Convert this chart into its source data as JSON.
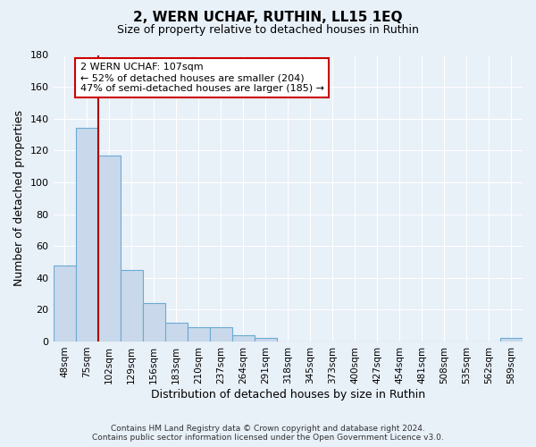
{
  "title": "2, WERN UCHAF, RUTHIN, LL15 1EQ",
  "subtitle": "Size of property relative to detached houses in Ruthin",
  "xlabel": "Distribution of detached houses by size in Ruthin",
  "ylabel": "Number of detached properties",
  "bar_labels": [
    "48sqm",
    "75sqm",
    "102sqm",
    "129sqm",
    "156sqm",
    "183sqm",
    "210sqm",
    "237sqm",
    "264sqm",
    "291sqm",
    "318sqm",
    "345sqm",
    "373sqm",
    "400sqm",
    "427sqm",
    "454sqm",
    "481sqm",
    "508sqm",
    "535sqm",
    "562sqm",
    "589sqm"
  ],
  "bar_values": [
    48,
    134,
    117,
    45,
    24,
    12,
    9,
    9,
    4,
    2,
    0,
    0,
    0,
    0,
    0,
    0,
    0,
    0,
    0,
    0,
    2
  ],
  "bar_color": "#c9d9eb",
  "bar_edge_color": "#6aaad4",
  "ylim": [
    0,
    180
  ],
  "yticks": [
    0,
    20,
    40,
    60,
    80,
    100,
    120,
    140,
    160,
    180
  ],
  "vline_x_index": 2,
  "vline_color": "#aa0000",
  "annotation_title": "2 WERN UCHAF: 107sqm",
  "annotation_line1": "← 52% of detached houses are smaller (204)",
  "annotation_line2": "47% of semi-detached houses are larger (185) →",
  "annotation_box_color": "#ffffff",
  "annotation_box_edge": "#cc0000",
  "footer1": "Contains HM Land Registry data © Crown copyright and database right 2024.",
  "footer2": "Contains public sector information licensed under the Open Government Licence v3.0.",
  "background_color": "#e8f0f8",
  "plot_background": "#e8f0f8",
  "grid_color": "#ffffff"
}
